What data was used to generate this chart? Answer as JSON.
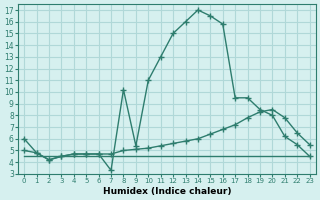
{
  "xlabel": "Humidex (Indice chaleur)",
  "ylabel": "",
  "bg_color": "#d6f0ef",
  "grid_color": "#b0d8d8",
  "line_color": "#2e7d6e",
  "xlim": [
    -0.5,
    23.5
  ],
  "ylim": [
    3,
    17.5
  ],
  "xticks": [
    0,
    1,
    2,
    3,
    4,
    5,
    6,
    7,
    8,
    9,
    10,
    11,
    12,
    13,
    14,
    15,
    16,
    17,
    18,
    19,
    20,
    21,
    22,
    23
  ],
  "yticks": [
    3,
    4,
    5,
    6,
    7,
    8,
    9,
    10,
    11,
    12,
    13,
    14,
    15,
    16,
    17
  ],
  "curve1_x": [
    0,
    1,
    2,
    3,
    4,
    5,
    6,
    7,
    8,
    9,
    10,
    11,
    12,
    13,
    14,
    15,
    16,
    17,
    18,
    19,
    20,
    21,
    22,
    23
  ],
  "curve1_y": [
    6.0,
    4.8,
    4.2,
    4.5,
    4.7,
    4.7,
    4.7,
    3.3,
    10.2,
    5.4,
    11.0,
    13.0,
    15.0,
    16.0,
    17.0,
    16.5,
    15.8,
    9.5,
    9.5,
    8.5,
    8.0,
    6.2,
    5.5,
    4.5
  ],
  "curve2_x": [
    0,
    1,
    2,
    3,
    4,
    5,
    6,
    7,
    8,
    9,
    10,
    11,
    12,
    13,
    14,
    15,
    16,
    17,
    18,
    19,
    20,
    21,
    22,
    23
  ],
  "curve2_y": [
    5.0,
    4.8,
    4.2,
    4.5,
    4.7,
    4.7,
    4.7,
    4.7,
    5.0,
    5.1,
    5.2,
    5.4,
    5.6,
    5.8,
    6.0,
    6.4,
    6.8,
    7.2,
    7.8,
    8.3,
    8.5,
    7.8,
    6.5,
    5.5
  ],
  "curve3_x": [
    0,
    23
  ],
  "curve3_y": [
    4.5,
    4.5
  ]
}
